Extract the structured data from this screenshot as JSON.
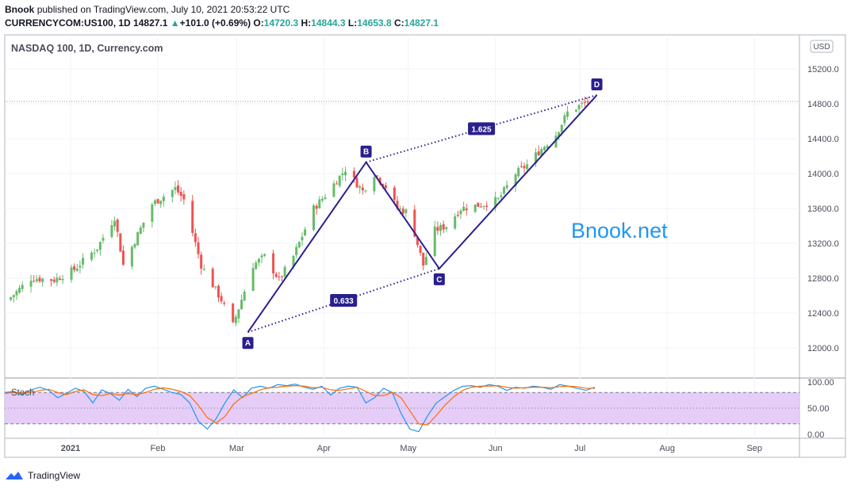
{
  "header": {
    "publisher": "Bnook",
    "published_text": "published on TradingView.com, July 10, 2021 20:53:22 UTC",
    "symbol": "CURRENCYCOM:US100, 1D",
    "last": "14827.1",
    "change_arrow": "▲",
    "change": "+101.0 (+0.69%)",
    "o_label": "O:",
    "o_value": "14720.3",
    "h_label": "H:",
    "h_value": "14844.3",
    "l_label": "L:",
    "l_value": "14653.8",
    "c_label": "C:",
    "c_value": "14827.1"
  },
  "watermark": "Bnook.net",
  "indicator_label": "Stoch",
  "currency_badge": "USD",
  "footer": {
    "brand": "TradingView",
    "logo_icon": "tradingview-logo-icon"
  },
  "colors": {
    "up": "#26a69a",
    "up_candle": "#66bb6a",
    "down_candle": "#ef5350",
    "pattern": "#2a1f8f",
    "watermark": "#2196f3",
    "stoch_k": "#2196f3",
    "stoch_d": "#ff6d00",
    "stoch_band": "#e1c4f7"
  },
  "chart_data": [
    {
      "type": "candlestick",
      "title": "NASDAQ 100, 1D, Currency.com",
      "y_axis": {
        "ticks": [
          12000,
          12400,
          12800,
          13200,
          13600,
          14000,
          14400,
          14800,
          15200
        ],
        "tick_labels": [
          "12000.0",
          "12400.0",
          "12800.0",
          "13200.0",
          "13600.0",
          "14000.0",
          "14400.0",
          "14800.0",
          "15200.0"
        ],
        "range": [
          11800,
          15600
        ],
        "position": "right"
      },
      "x_axis": {
        "tick_labels": [
          "2021",
          "Feb",
          "Mar",
          "Apr",
          "May",
          "Jun",
          "Jul",
          "Aug",
          "Sep"
        ]
      },
      "last_price_line": 14827.1,
      "pivot_closes": [
        [
          "2020-12-20",
          12550
        ],
        [
          "2020-12-28",
          12800
        ],
        [
          "2021-01-05",
          12780
        ],
        [
          "2021-01-12",
          12900
        ],
        [
          "2021-01-20",
          13150
        ],
        [
          "2021-01-26",
          13500
        ],
        [
          "2021-01-29",
          12950
        ],
        [
          "2021-02-03",
          13300
        ],
        [
          "2021-02-08",
          13650
        ],
        [
          "2021-02-16",
          13830
        ],
        [
          "2021-02-19",
          13700
        ],
        [
          "2021-02-25",
          12950
        ],
        [
          "2021-03-04",
          12550
        ],
        [
          "2021-03-08",
          12260
        ],
        [
          "2021-03-15",
          12950
        ],
        [
          "2021-03-19",
          13050
        ],
        [
          "2021-03-24",
          12780
        ],
        [
          "2021-03-29",
          13050
        ],
        [
          "2021-04-05",
          13600
        ],
        [
          "2021-04-09",
          13750
        ],
        [
          "2021-04-16",
          14050
        ],
        [
          "2021-04-22",
          13800
        ],
        [
          "2021-04-26",
          14000
        ],
        [
          "2021-04-30",
          13850
        ],
        [
          "2021-05-04",
          13600
        ],
        [
          "2021-05-08",
          13550
        ],
        [
          "2021-05-13",
          12950
        ],
        [
          "2021-05-17",
          13350
        ],
        [
          "2021-05-21",
          13400
        ],
        [
          "2021-05-26",
          13600
        ],
        [
          "2021-06-03",
          13650
        ],
        [
          "2021-06-08",
          13700
        ],
        [
          "2021-06-14",
          14000
        ],
        [
          "2021-06-18",
          14100
        ],
        [
          "2021-06-22",
          14250
        ],
        [
          "2021-06-28",
          14450
        ],
        [
          "2021-07-02",
          14700
        ],
        [
          "2021-07-09",
          14827
        ]
      ],
      "pattern": {
        "points": [
          {
            "label": "A",
            "date": "2021-03-05",
            "price": 12180
          },
          {
            "label": "B",
            "date": "2021-04-16",
            "price": 14130
          },
          {
            "label": "C",
            "date": "2021-05-12",
            "price": 12910
          },
          {
            "label": "D",
            "date": "2021-07-07",
            "price": 14900
          }
        ],
        "ratios": [
          {
            "label": "1.625"
          },
          {
            "label": "0.633"
          }
        ]
      }
    },
    {
      "type": "line",
      "title": "Stoch",
      "y_axis": {
        "ticks": [
          0,
          50,
          100
        ],
        "tick_labels": [
          "0.00",
          "50.00",
          "100.00"
        ],
        "band": [
          20,
          80
        ]
      },
      "series": [
        {
          "key": "k",
          "values": [
            80,
            82,
            76,
            85,
            90,
            84,
            70,
            78,
            88,
            82,
            60,
            85,
            78,
            65,
            86,
            72,
            88,
            92,
            86,
            80,
            76,
            60,
            25,
            10,
            30,
            60,
            85,
            70,
            88,
            92,
            88,
            95,
            93,
            96,
            90,
            86,
            92,
            75,
            88,
            92,
            90,
            60,
            70,
            88,
            80,
            40,
            10,
            5,
            35,
            60,
            72,
            84,
            92,
            93,
            90,
            95,
            92,
            84,
            90,
            88,
            92,
            90,
            86,
            95,
            92,
            88,
            84,
            90
          ]
        },
        {
          "key": "d",
          "values": [
            78,
            80,
            79,
            80,
            84,
            86,
            80,
            76,
            82,
            85,
            76,
            74,
            78,
            75,
            78,
            76,
            80,
            86,
            89,
            86,
            82,
            74,
            55,
            32,
            22,
            34,
            58,
            72,
            78,
            85,
            89,
            90,
            92,
            93,
            92,
            89,
            90,
            85,
            84,
            87,
            90,
            82,
            74,
            74,
            80,
            70,
            45,
            20,
            18,
            36,
            56,
            72,
            84,
            90,
            92,
            92,
            93,
            90,
            88,
            89,
            90,
            90,
            89,
            91,
            92,
            91,
            88,
            88
          ]
        }
      ]
    }
  ]
}
